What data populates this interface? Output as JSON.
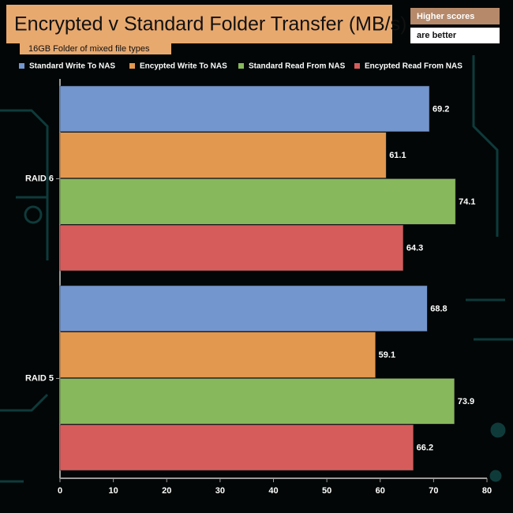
{
  "chart_data": {
    "type": "barh",
    "title": "Encrypted v Standard Folder Transfer (MB/s)",
    "subtitle": "16GB Folder of mixed file types",
    "annotations": [
      "Higher scores",
      "are better"
    ],
    "categories": [
      "RAID 6",
      "RAID 5"
    ],
    "series": [
      {
        "name": "Standard Write To NAS",
        "color": "#7396cf",
        "values": [
          69.2,
          68.8
        ]
      },
      {
        "name": "Encypted Write To NAS",
        "color": "#e3984f",
        "values": [
          61.1,
          59.1
        ]
      },
      {
        "name": "Standard Read From NAS",
        "color": "#87b85c",
        "values": [
          74.1,
          73.9
        ]
      },
      {
        "name": "Encypted Read From NAS",
        "color": "#d65c5c",
        "values": [
          64.3,
          66.2
        ]
      }
    ],
    "xlim": [
      0,
      80
    ],
    "xticks": [
      0,
      10,
      20,
      30,
      40,
      50,
      60,
      70,
      80
    ],
    "legend": "top"
  }
}
